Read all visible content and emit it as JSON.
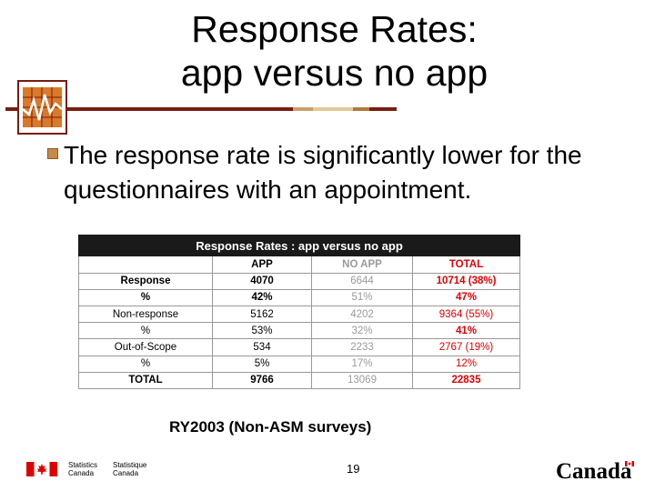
{
  "title": {
    "line1": "Response Rates:",
    "line2": "app versus no app"
  },
  "bullet": "The response rate is significantly lower for the questionnaires with an appointment.",
  "table": {
    "title": "Response Rates : app versus no app",
    "headers": [
      "",
      "APP",
      "NO APP",
      "TOTAL"
    ],
    "rows": [
      {
        "label": "Response",
        "app": "4070",
        "noapp": "6644",
        "total": "10714 (38%)"
      },
      {
        "label": "%",
        "app": "42%",
        "noapp": "51%",
        "total": "47%"
      },
      {
        "label": "Non-response",
        "app": "5162",
        "noapp": "4202",
        "total": "9364 (55%)"
      },
      {
        "label": "%",
        "app": "53%",
        "noapp": "32%",
        "total": "41%"
      },
      {
        "label": "Out-of-Scope",
        "app": "534",
        "noapp": "2233",
        "total": "2767 (19%)"
      },
      {
        "label": "%",
        "app": "5%",
        "noapp": "17%",
        "total": "12%"
      },
      {
        "label": "TOTAL",
        "app": "9766",
        "noapp": "13069",
        "total": "22835"
      }
    ]
  },
  "note": "RY2003 (Non-ASM surveys)",
  "page_number": "19",
  "footer": {
    "statcan_en": [
      "Statistics",
      "Canada"
    ],
    "statcan_fr": [
      "Statistique",
      "Canada"
    ],
    "wordmark": "Canada"
  },
  "colors": {
    "accent_dark": "#7a1c10",
    "total_red": "#e00000",
    "noapp_gray": "#9a9a9a"
  }
}
